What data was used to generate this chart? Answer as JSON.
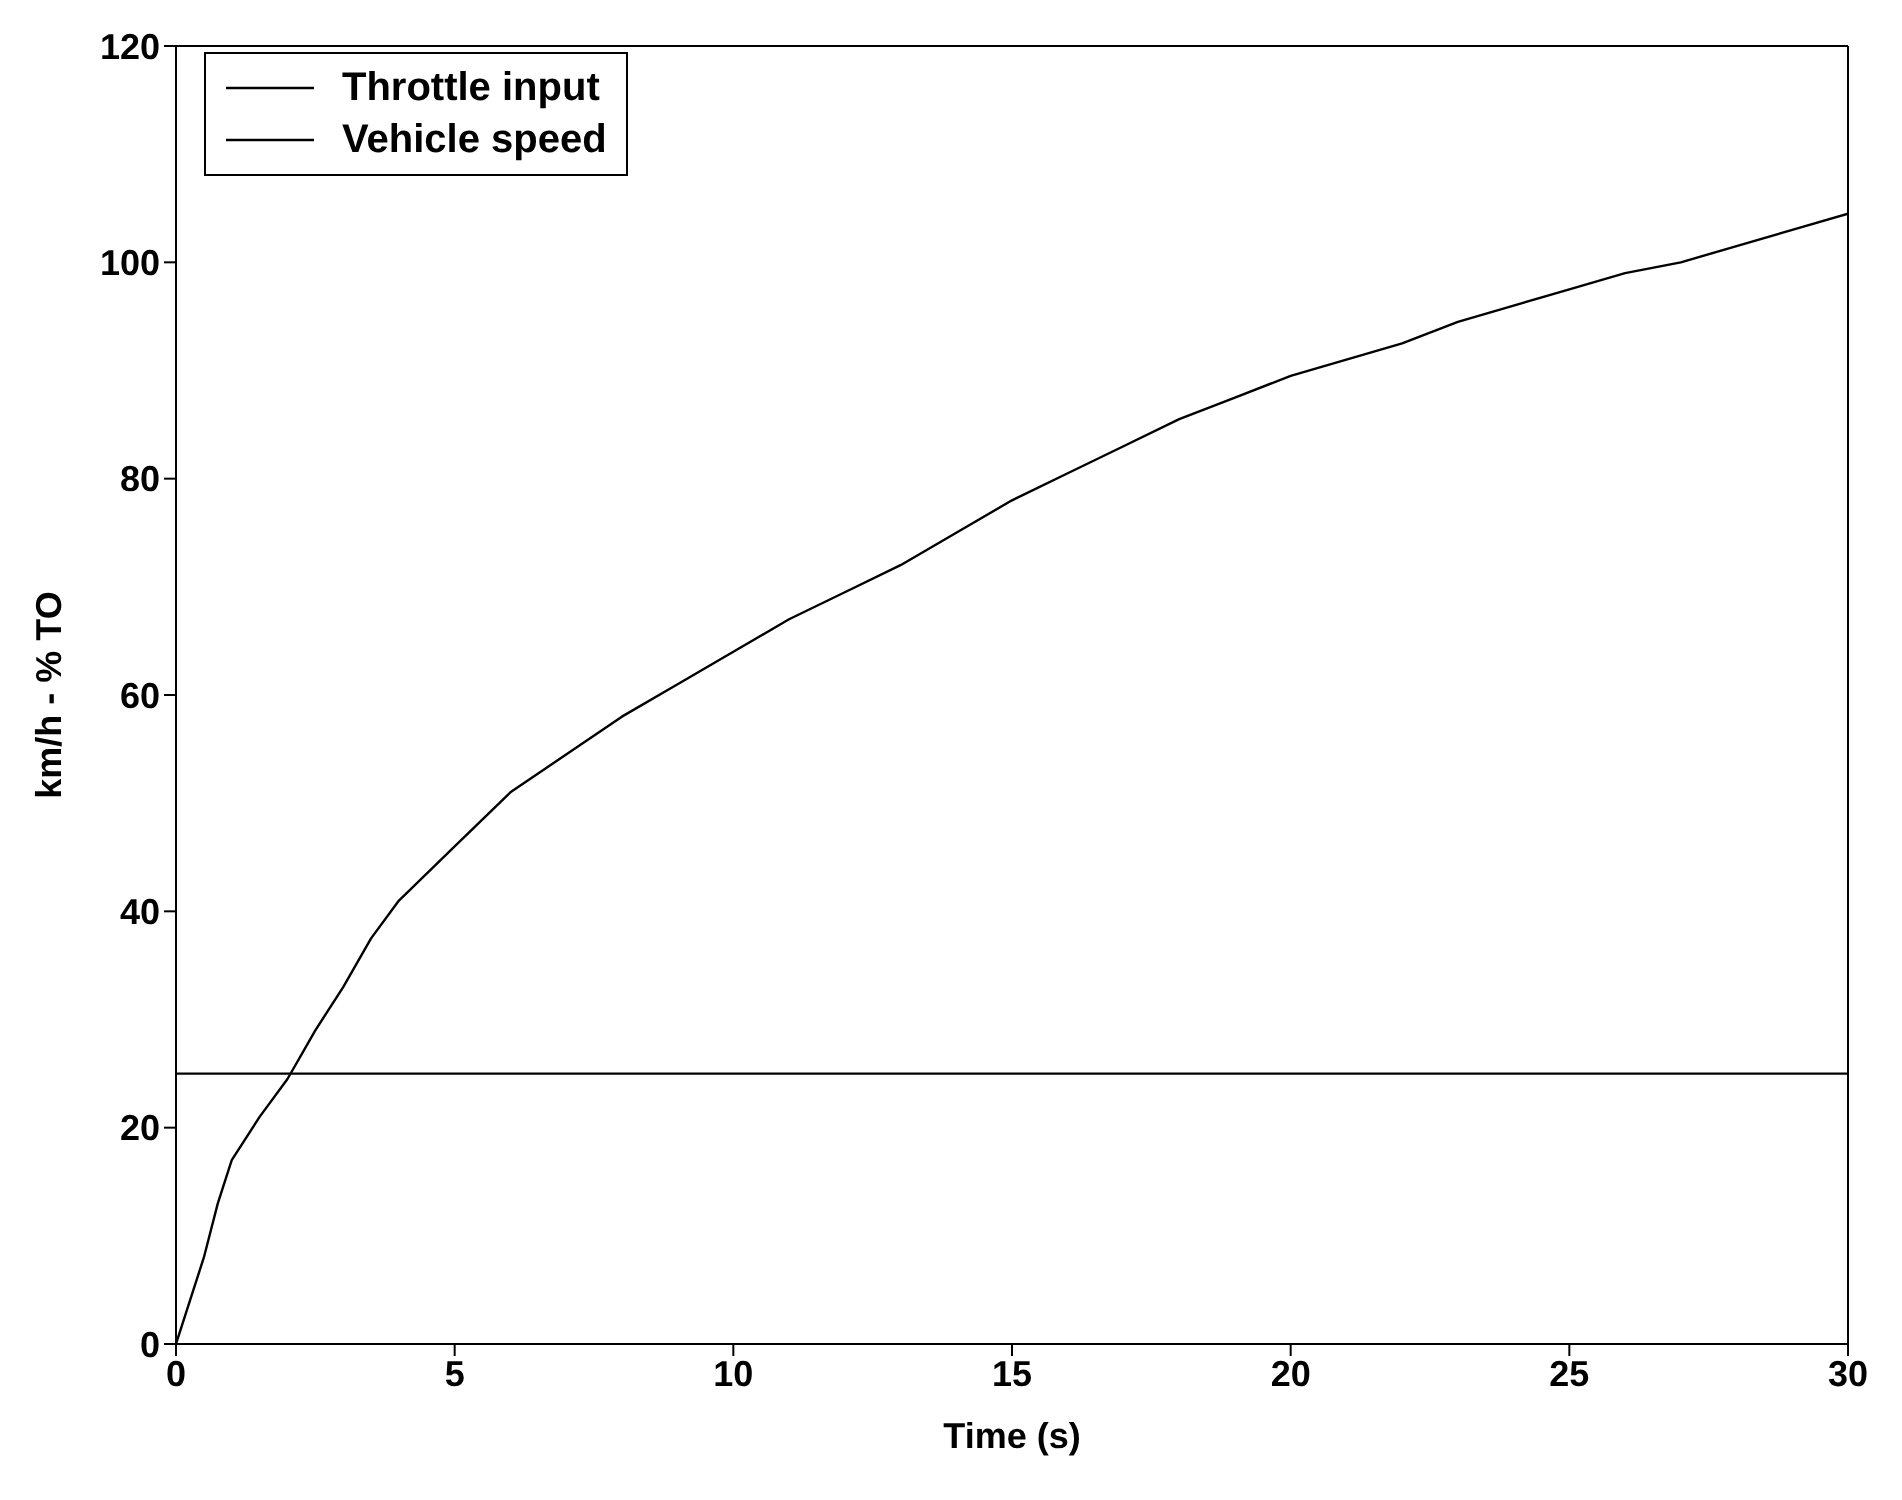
{
  "chart_data": {
    "type": "line",
    "xlabel": "Time (s)",
    "ylabel": "km/h - % TO",
    "xlim": [
      0,
      30
    ],
    "xticks": [
      0,
      5,
      10,
      15,
      20,
      25,
      30
    ],
    "ylim": [
      0,
      120
    ],
    "yticks": [
      0,
      20,
      40,
      60,
      80,
      100,
      120
    ],
    "grid": false,
    "legend": "top left",
    "marker": "none",
    "line_style": "solid",
    "series": [
      {
        "name": "Throttle input",
        "color": "#000000",
        "x": [
          0,
          30
        ],
        "values": [
          25,
          25
        ]
      },
      {
        "name": "Vehicle speed",
        "color": "#000000",
        "x": [
          0,
          0.25,
          0.5,
          0.75,
          1,
          1.5,
          2,
          2.5,
          3,
          3.5,
          4,
          5,
          6,
          7,
          8,
          9,
          10,
          11,
          12,
          13,
          14,
          15,
          16,
          17,
          18,
          19,
          20,
          21,
          22,
          23,
          24,
          25,
          26,
          27,
          28,
          29,
          30
        ],
        "values": [
          0,
          4,
          8,
          13,
          17,
          21,
          24.5,
          29,
          33,
          37.5,
          41,
          46,
          51,
          54.5,
          58,
          61,
          64,
          67,
          69.5,
          72,
          75,
          78,
          80.5,
          83,
          85.5,
          87.5,
          89.5,
          91,
          92.5,
          94.5,
          96,
          97.5,
          99,
          100,
          101.5,
          103,
          104.5
        ]
      }
    ]
  }
}
